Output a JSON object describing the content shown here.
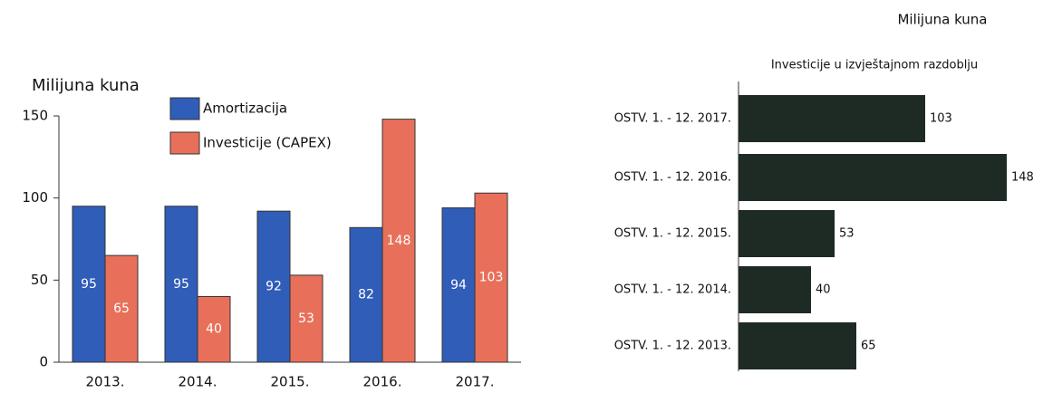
{
  "chart_data": [
    {
      "type": "bar",
      "ylabel": "Milijuna kuna",
      "categories": [
        "2013.",
        "2014.",
        "2015.",
        "2016.",
        "2017."
      ],
      "series": [
        {
          "name": "Amortizacija",
          "color": "#2f5db8",
          "values": [
            95,
            95,
            92,
            82,
            94
          ]
        },
        {
          "name": "Investicije (CAPEX)",
          "color": "#e8705a",
          "values": [
            65,
            40,
            53,
            148,
            103
          ]
        }
      ],
      "ylim": [
        0,
        150
      ],
      "yticks": [
        0,
        50,
        100,
        150
      ]
    },
    {
      "type": "hbar",
      "title": "Investicije u izvještajnom razdoblju",
      "subtitle": "Milijuna kuna",
      "categories": [
        "OSTV. 1. - 12. 2017.",
        "OSTV. 1. - 12. 2016.",
        "OSTV. 1. - 12. 2015.",
        "OSTV. 1. - 12. 2014.",
        "OSTV. 1. - 12. 2013."
      ],
      "values": [
        103,
        148,
        53,
        40,
        65
      ],
      "color": "#1e2b25"
    }
  ]
}
